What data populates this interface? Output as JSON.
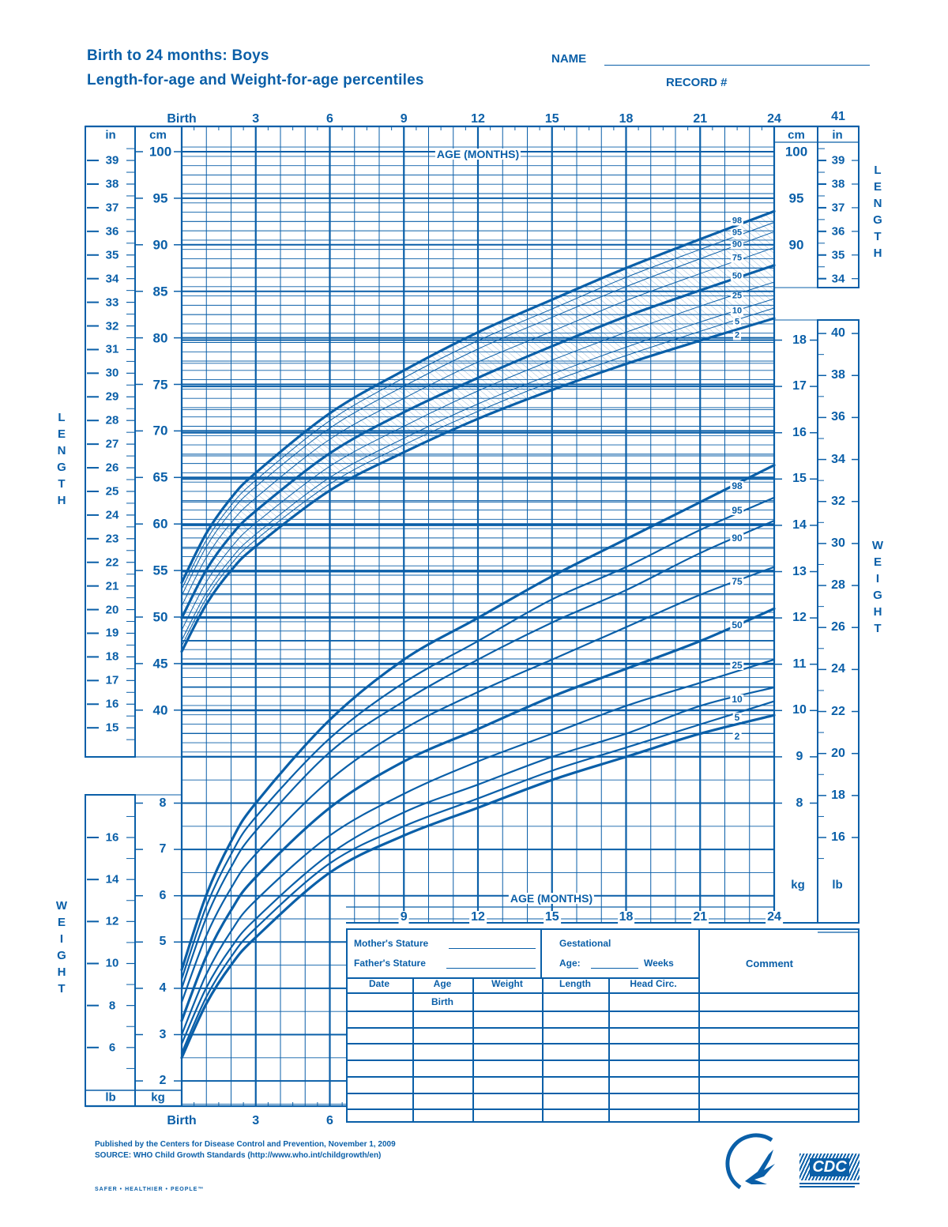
{
  "header": {
    "title_line1": "Birth to 24 months: Boys",
    "title_line2": "Length-for-age and Weight-for-age percentiles",
    "name_label": "NAME",
    "record_label": "RECORD #"
  },
  "axes": {
    "age_top_ticks": [
      "Birth",
      "3",
      "6",
      "9",
      "12",
      "15",
      "18",
      "21",
      "24"
    ],
    "age_top_extra": "41",
    "age_label": "AGE (MONTHS)",
    "age_bottom_left_ticks": [
      "Birth",
      "3",
      "6"
    ],
    "age_mid_ticks": [
      "9",
      "12",
      "15",
      "18",
      "21",
      "24"
    ],
    "length_cm_left": [
      "100",
      "95",
      "90",
      "85",
      "80",
      "75",
      "70",
      "65",
      "60",
      "55",
      "50",
      "45",
      "40"
    ],
    "length_in_left": [
      "39",
      "38",
      "37",
      "36",
      "35",
      "34",
      "33",
      "32",
      "31",
      "30",
      "29",
      "28",
      "27",
      "26",
      "25",
      "24",
      "23",
      "22",
      "21",
      "20",
      "19",
      "18",
      "17",
      "16",
      "15"
    ],
    "length_cm_right": [
      "100",
      "95",
      "90"
    ],
    "length_in_right": [
      "39",
      "38",
      "37",
      "36",
      "35",
      "34"
    ],
    "weight_kg_left": [
      "8",
      "7",
      "6",
      "5",
      "4",
      "3",
      "2"
    ],
    "weight_lb_left": [
      "16",
      "14",
      "12",
      "10",
      "8",
      "6"
    ],
    "weight_kg_right": [
      "18",
      "17",
      "16",
      "15",
      "14",
      "13",
      "12",
      "11",
      "10",
      "9",
      "8"
    ],
    "weight_lb_right": [
      "40",
      "38",
      "36",
      "34",
      "32",
      "30",
      "28",
      "26",
      "24",
      "22",
      "20",
      "18",
      "16"
    ],
    "unit_in": "in",
    "unit_cm": "cm",
    "unit_lb": "lb",
    "unit_kg": "kg",
    "side_length": "LENGTH",
    "side_weight": "WEIGHT"
  },
  "form": {
    "mothers_stature": "Mother's Stature",
    "fathers_stature": "Father's Stature",
    "gestational": "Gestational",
    "age_weeks_prefix": "Age:",
    "age_weeks_suffix": "Weeks",
    "comment": "Comment",
    "columns": [
      "Date",
      "Age",
      "Weight",
      "Length",
      "Head Circ."
    ],
    "first_row_age": "Birth"
  },
  "footer": {
    "published": "Published by the Centers for Disease Control and Prevention, November 1, 2009",
    "source": "SOURCE:  WHO Child Growth Standards (http://www.who.int/childgrowth/en)",
    "slogan": "SAFER • HEALTHIER • PEOPLE™",
    "logo_cdc": "CDC"
  },
  "colors": {
    "ink": "#0a5fa8"
  },
  "chart_data": [
    {
      "type": "line",
      "title": "Length-for-age percentiles, Boys, Birth to 24 months",
      "xlabel": "AGE (MONTHS)",
      "ylabel": "LENGTH (cm)",
      "x": [
        0,
        3,
        6,
        9,
        12,
        15,
        18,
        21,
        24
      ],
      "ylim": [
        40,
        100
      ],
      "grid": true,
      "series": [
        {
          "name": "2",
          "values": [
            46.3,
            57.6,
            63.6,
            67.7,
            71.3,
            74.4,
            77.2,
            79.7,
            82.1
          ]
        },
        {
          "name": "5",
          "values": [
            46.9,
            58.3,
            64.3,
            68.5,
            72.1,
            75.3,
            78.1,
            80.7,
            83.2
          ]
        },
        {
          "name": "10",
          "values": [
            47.5,
            58.9,
            65.0,
            69.2,
            72.9,
            76.1,
            79.0,
            81.7,
            84.2
          ]
        },
        {
          "name": "25",
          "values": [
            48.6,
            60.1,
            66.2,
            70.5,
            74.3,
            77.6,
            80.6,
            83.4,
            86.0
          ]
        },
        {
          "name": "50",
          "values": [
            49.9,
            61.4,
            67.6,
            72.0,
            75.7,
            79.1,
            82.3,
            85.1,
            87.8
          ]
        },
        {
          "name": "75",
          "values": [
            51.2,
            62.8,
            69.1,
            73.5,
            77.4,
            80.7,
            84.0,
            86.9,
            89.7
          ]
        },
        {
          "name": "90",
          "values": [
            52.3,
            64.0,
            70.3,
            74.8,
            78.8,
            82.2,
            85.5,
            88.5,
            91.4
          ]
        },
        {
          "name": "95",
          "values": [
            53.0,
            64.7,
            71.1,
            75.7,
            79.7,
            83.1,
            86.5,
            89.5,
            92.4
          ]
        },
        {
          "name": "98",
          "values": [
            53.7,
            65.5,
            71.9,
            76.5,
            80.6,
            84.1,
            87.5,
            90.6,
            93.6
          ]
        }
      ]
    },
    {
      "type": "line",
      "title": "Weight-for-age percentiles, Boys, Birth to 24 months",
      "xlabel": "AGE (MONTHS)",
      "ylabel": "WEIGHT (kg)",
      "x": [
        0,
        3,
        6,
        9,
        12,
        15,
        18,
        21,
        24
      ],
      "ylim": [
        2,
        18
      ],
      "grid": true,
      "series": [
        {
          "name": "2",
          "values": [
            2.5,
            5.1,
            6.5,
            7.3,
            7.9,
            8.5,
            9.0,
            9.5,
            9.9
          ]
        },
        {
          "name": "5",
          "values": [
            2.6,
            5.3,
            6.7,
            7.5,
            8.1,
            8.7,
            9.2,
            9.7,
            10.2
          ]
        },
        {
          "name": "10",
          "values": [
            2.8,
            5.5,
            6.9,
            7.8,
            8.4,
            9.0,
            9.5,
            10.1,
            10.5
          ]
        },
        {
          "name": "25",
          "values": [
            3.0,
            5.9,
            7.3,
            8.2,
            8.9,
            9.5,
            10.1,
            10.6,
            11.1
          ]
        },
        {
          "name": "50",
          "values": [
            3.3,
            6.4,
            7.9,
            8.9,
            9.6,
            10.3,
            10.9,
            11.5,
            12.2
          ]
        },
        {
          "name": "75",
          "values": [
            3.7,
            6.9,
            8.5,
            9.6,
            10.4,
            11.1,
            11.8,
            12.5,
            13.1
          ]
        },
        {
          "name": "90",
          "values": [
            4.0,
            7.4,
            9.1,
            10.2,
            11.1,
            11.9,
            12.6,
            13.4,
            14.1
          ]
        },
        {
          "name": "95",
          "values": [
            4.2,
            7.7,
            9.4,
            10.6,
            11.5,
            12.4,
            13.1,
            13.9,
            14.6
          ]
        },
        {
          "name": "98",
          "values": [
            4.4,
            8.0,
            9.8,
            11.1,
            12.0,
            12.9,
            13.7,
            14.5,
            15.3
          ]
        }
      ]
    }
  ]
}
